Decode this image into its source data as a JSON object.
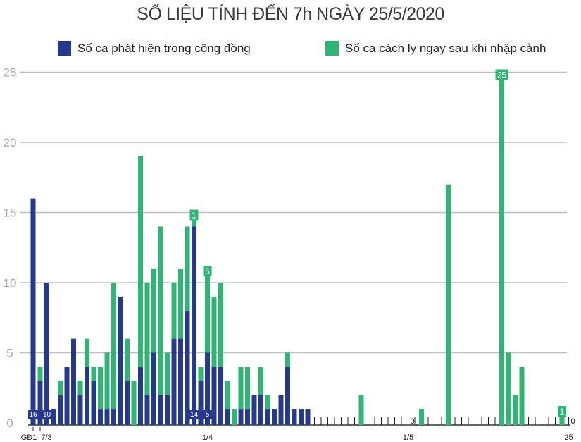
{
  "chart_data": {
    "type": "bar",
    "stacked": true,
    "title": "SỐ LIỆU TÍNH ĐẾN 7h NGÀY 25/5/2020",
    "legend_position": "top",
    "grid": true,
    "ylim": [
      0,
      25
    ],
    "yticks": [
      "0",
      "5",
      "10",
      "15",
      "20",
      "25"
    ],
    "xtick_labels": [
      {
        "category": "GĐ1",
        "text": "GĐ1"
      },
      {
        "category": "7/3",
        "text": "7/3"
      },
      {
        "category": "1/4",
        "text": "1/4"
      },
      {
        "category": "1/5",
        "text": "1/5"
      },
      {
        "category": "25/5",
        "text": "25"
      }
    ],
    "categories": [
      "GĐ1",
      "7/3",
      "8/3",
      "9/3",
      "10/3",
      "11/3",
      "12/3",
      "13/3",
      "14/3",
      "15/3",
      "16/3",
      "17/3",
      "18/3",
      "19/3",
      "20/3",
      "21/3",
      "22/3",
      "23/3",
      "24/3",
      "25/3",
      "26/3",
      "27/3",
      "28/3",
      "29/3",
      "30/3",
      "31/3",
      "1/4",
      "2/4",
      "3/4",
      "4/4",
      "5/4",
      "6/4",
      "7/4",
      "8/4",
      "9/4",
      "10/4",
      "11/4",
      "12/4",
      "13/4",
      "14/4",
      "15/4",
      "16/4",
      "17/4",
      "18/4",
      "19/4",
      "20/4",
      "21/4",
      "22/4",
      "23/4",
      "24/4",
      "25/4",
      "26/4",
      "27/4",
      "28/4",
      "29/4",
      "30/4",
      "1/5",
      "2/5",
      "3/5",
      "4/5",
      "5/5",
      "6/5",
      "7/5",
      "8/5",
      "9/5",
      "10/5",
      "11/5",
      "12/5",
      "13/5",
      "14/5",
      "15/5",
      "16/5",
      "17/5",
      "18/5",
      "19/5",
      "20/5",
      "21/5",
      "22/5",
      "23/5",
      "24/5",
      "25/5"
    ],
    "series": [
      {
        "name": "Số ca phát hiện trong cộng đồng",
        "color": "#26398c",
        "values": [
          16,
          3,
          10,
          1,
          2,
          4,
          6,
          2,
          4,
          3,
          1,
          1,
          1,
          9,
          3,
          0,
          4,
          2,
          5,
          2,
          2,
          6,
          6,
          8,
          14,
          3,
          5,
          4,
          4,
          1,
          0,
          1,
          1,
          2,
          2,
          1,
          1,
          2,
          4,
          1,
          1,
          1,
          0,
          0,
          0,
          0,
          0,
          0,
          0,
          0,
          0,
          0,
          0,
          0,
          0,
          0,
          0,
          0,
          0,
          0,
          0,
          0,
          0,
          0,
          0,
          0,
          0,
          0,
          0,
          0,
          0,
          0,
          0,
          0,
          0,
          0,
          0,
          0,
          0,
          0,
          0
        ]
      },
      {
        "name": "Số ca cách ly ngay sau khi nhập cảnh",
        "color": "#2fb574",
        "values": [
          0,
          1,
          0,
          0,
          1,
          0,
          0,
          1,
          2,
          1,
          3,
          4,
          9,
          0,
          3,
          3,
          15,
          8,
          6,
          12,
          3,
          4,
          5,
          6,
          1,
          1,
          6,
          5,
          6,
          2,
          1,
          3,
          3,
          0,
          2,
          1,
          0,
          0,
          1,
          0,
          0,
          0,
          0,
          0,
          0,
          0,
          0,
          0,
          0,
          2,
          0,
          0,
          0,
          0,
          0,
          0,
          0,
          0,
          1,
          0,
          0,
          0,
          17,
          0,
          0,
          0,
          0,
          0,
          0,
          0,
          25,
          5,
          2,
          4,
          0,
          0,
          0,
          0,
          0,
          1,
          0
        ]
      }
    ],
    "annotations": [
      {
        "category": "GĐ1",
        "text": "16",
        "position": "bottom",
        "series": 0
      },
      {
        "category": "8/3",
        "text": "10",
        "position": "bottom",
        "series": 0
      },
      {
        "category": "30/3",
        "text": "14",
        "position": "bottom",
        "series": 0
      },
      {
        "category": "1/4",
        "text": "5",
        "position": "bottom",
        "series": 0
      },
      {
        "category": "30/3",
        "text": "1",
        "position": "top",
        "series": 1
      },
      {
        "category": "1/4",
        "text": "6",
        "position": "top",
        "series": 1
      },
      {
        "category": "15/5",
        "text": "25",
        "position": "top",
        "series": 1
      },
      {
        "category": "24/5",
        "text": "1",
        "position": "top",
        "series": 1
      },
      {
        "category": "1/5",
        "text": "0",
        "position": "zero"
      },
      {
        "category": "25/5",
        "text": "0",
        "position": "zero"
      }
    ]
  }
}
